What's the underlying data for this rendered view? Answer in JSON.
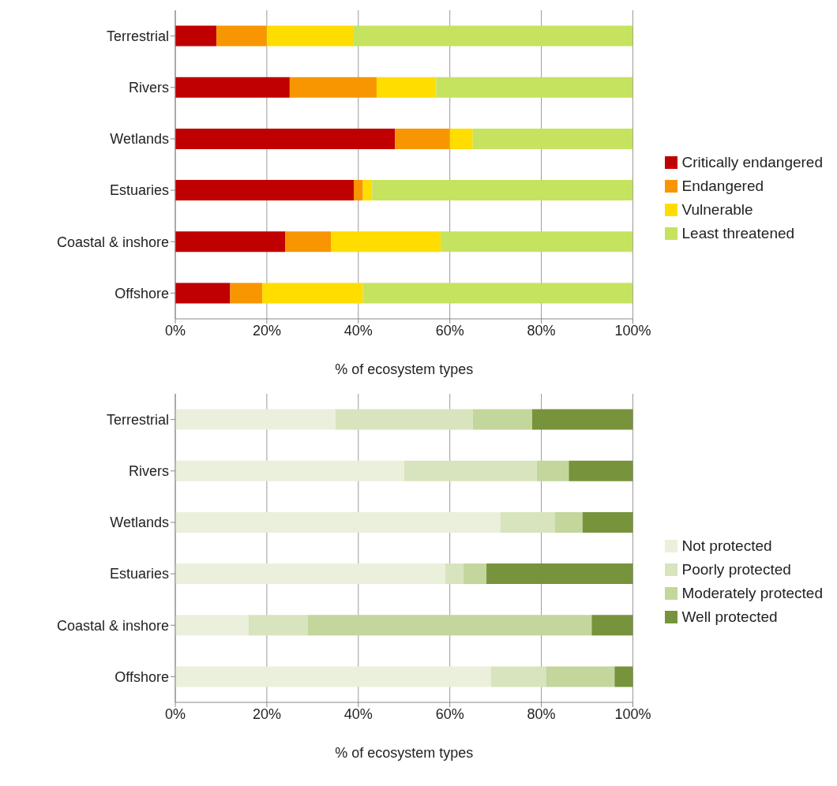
{
  "chart_data": [
    {
      "type": "bar",
      "orientation": "horizontal",
      "stacked": true,
      "xlabel": "% of ecosystem types",
      "categories": [
        "Terrestrial",
        "Rivers",
        "Wetlands",
        "Estuaries",
        "Coastal & inshore",
        "Offshore"
      ],
      "series": [
        {
          "name": "Critically endangered",
          "color": "#c00000",
          "values": [
            9,
            25,
            48,
            39,
            24,
            12
          ]
        },
        {
          "name": "Endangered",
          "color": "#f79600",
          "values": [
            11,
            19,
            12,
            2,
            10,
            7
          ]
        },
        {
          "name": "Vulnerable",
          "color": "#ffdd00",
          "values": [
            19,
            13,
            5,
            2,
            24,
            22
          ]
        },
        {
          "name": "Least threatened",
          "color": "#c5e35f",
          "values": [
            61,
            43,
            35,
            57,
            42,
            59
          ]
        }
      ],
      "xlim": [
        0,
        100
      ],
      "xticks": [
        {
          "value": 0,
          "label": "0%"
        },
        {
          "value": 20,
          "label": "20%"
        },
        {
          "value": 40,
          "label": "40%"
        },
        {
          "value": 60,
          "label": "60%"
        },
        {
          "value": 80,
          "label": "80%"
        },
        {
          "value": 100,
          "label": "100%"
        }
      ],
      "grid": "x",
      "legend": "right"
    },
    {
      "type": "bar",
      "orientation": "horizontal",
      "stacked": true,
      "xlabel": "% of ecosystem types",
      "categories": [
        "Terrestrial",
        "Rivers",
        "Wetlands",
        "Estuaries",
        "Coastal & inshore",
        "Offshore"
      ],
      "series": [
        {
          "name": "Not protected",
          "color": "#ebf0dc",
          "values": [
            35,
            50,
            71,
            59,
            16,
            69
          ]
        },
        {
          "name": "Poorly protected",
          "color": "#d7e4bd",
          "values": [
            30,
            29,
            12,
            4,
            13,
            12
          ]
        },
        {
          "name": "Moderately protected",
          "color": "#c3d69b",
          "values": [
            13,
            7,
            6,
            5,
            62,
            15
          ]
        },
        {
          "name": "Well protected",
          "color": "#77933c",
          "values": [
            22,
            14,
            11,
            32,
            9,
            4
          ]
        }
      ],
      "xlim": [
        0,
        100
      ],
      "xticks": [
        {
          "value": 0,
          "label": "0%"
        },
        {
          "value": 20,
          "label": "20%"
        },
        {
          "value": 40,
          "label": "40%"
        },
        {
          "value": 60,
          "label": "60%"
        },
        {
          "value": 80,
          "label": "80%"
        },
        {
          "value": 100,
          "label": "100%"
        }
      ],
      "grid": "x",
      "legend": "right"
    }
  ]
}
